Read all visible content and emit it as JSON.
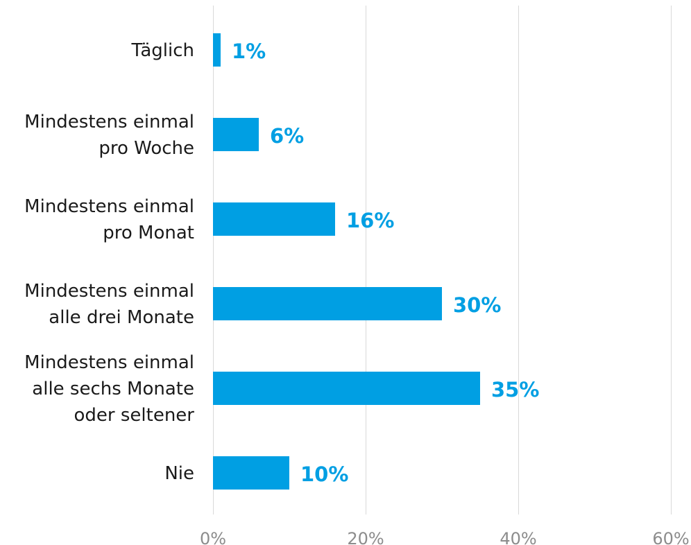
{
  "chart_data": {
    "type": "bar",
    "orientation": "horizontal",
    "categories": [
      [
        "Täglich"
      ],
      [
        "Mindestens einmal",
        "pro Woche"
      ],
      [
        "Mindestens einmal",
        "pro Monat"
      ],
      [
        "Mindestens einmal",
        "alle drei Monate"
      ],
      [
        "Mindestens einmal",
        "alle sechs Monate",
        "oder seltener"
      ],
      [
        "Nie"
      ]
    ],
    "values": [
      1,
      6,
      16,
      30,
      35,
      10
    ],
    "value_labels": [
      "1%",
      "6%",
      "16%",
      "30%",
      "35%",
      "10%"
    ],
    "xlim": [
      0,
      60
    ],
    "xticks": [
      0,
      20,
      40,
      60
    ],
    "xtick_labels": [
      "0%",
      "20%",
      "40%",
      "60%"
    ],
    "grid": true,
    "bar_color": "#009fe3",
    "label_color": "#009fe3",
    "title": "",
    "xlabel": "",
    "ylabel": ""
  }
}
